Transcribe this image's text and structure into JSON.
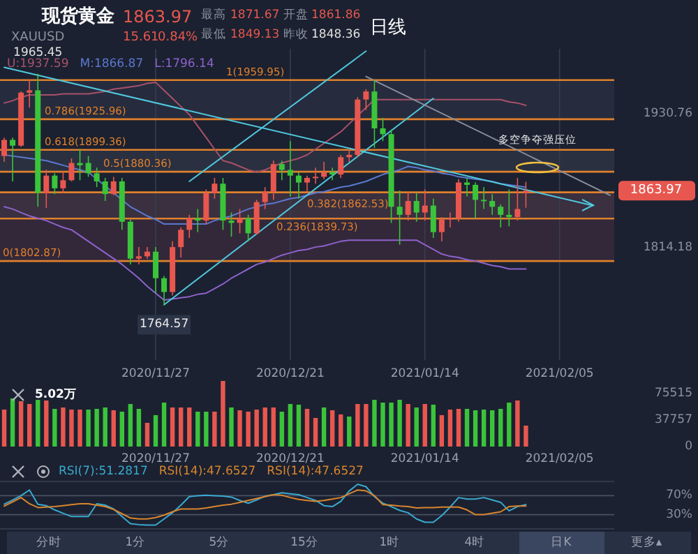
{
  "chart_data": [
    {
      "type": "other",
      "title": "现货黄金",
      "annotations": [
        "XAUUSD",
        "1863.97",
        "15.61",
        "0.84%",
        "最高",
        "1871.67",
        "开盘",
        "1861.86",
        "最低",
        "1849.13",
        "昨收",
        "1848.36",
        "分时",
        "1分",
        "5分",
        "15分",
        "1时",
        "4时",
        "日K",
        "更多▴"
      ]
    },
    {
      "type": "candlestick",
      "categories": [
        null,
        null,
        null,
        null,
        null,
        null,
        null,
        null,
        null,
        null,
        null,
        null,
        null,
        null,
        null,
        null,
        null,
        null,
        "2020/11/27",
        null,
        null,
        null,
        null,
        null,
        null,
        null,
        null,
        null,
        null,
        null,
        null,
        null,
        null,
        null,
        "2020/12/21",
        null,
        null,
        null,
        null,
        null,
        null,
        null,
        null,
        null,
        null,
        null,
        null,
        null,
        null,
        null,
        "2021/01/14",
        null,
        null,
        null,
        null,
        null,
        null,
        null,
        null,
        null,
        null,
        null,
        null,
        null,
        null,
        null,
        "2021/02/05",
        null,
        null,
        null,
        null,
        null,
        null
      ],
      "ohlc": [
        [
          1894,
          1910,
          1889,
          1908
        ],
        [
          1908,
          1910,
          1872,
          1903
        ],
        [
          1903,
          1950,
          1902,
          1949
        ],
        [
          1949,
          1960,
          1936,
          1951
        ],
        [
          1951,
          1965.45,
          1850,
          1862
        ],
        [
          1862,
          1882,
          1849,
          1877
        ],
        [
          1877,
          1879,
          1861,
          1866
        ],
        [
          1866,
          1881,
          1862,
          1873
        ],
        [
          1873,
          1892,
          1872,
          1888
        ],
        [
          1888,
          1900,
          1873,
          1886
        ],
        [
          1888,
          1894,
          1876,
          1879
        ],
        [
          1879,
          1884,
          1867,
          1872
        ],
        [
          1872,
          1875,
          1855,
          1861
        ],
        [
          1861,
          1876,
          1860,
          1872
        ],
        [
          1872,
          1875,
          1830,
          1837
        ],
        [
          1837,
          1839,
          1800,
          1805
        ],
        [
          1805,
          1815,
          1800,
          1807
        ],
        [
          1807,
          1815,
          1805,
          1811
        ],
        [
          1811,
          1815,
          1775,
          1788
        ],
        [
          1788,
          1790,
          1764.57,
          1776
        ],
        [
          1776,
          1820,
          1773,
          1815
        ],
        [
          1815,
          1832,
          1806,
          1830
        ],
        [
          1830,
          1843,
          1823,
          1840
        ],
        [
          1840,
          1848,
          1828,
          1838
        ],
        [
          1838,
          1865,
          1835,
          1862
        ],
        [
          1862,
          1875,
          1857,
          1870
        ],
        [
          1870,
          1875,
          1830,
          1838
        ],
        [
          1838,
          1845,
          1824,
          1836
        ],
        [
          1836,
          1848,
          1827,
          1840
        ],
        [
          1840,
          1843,
          1820,
          1827
        ],
        [
          1827,
          1856,
          1826,
          1854
        ],
        [
          1854,
          1867,
          1848,
          1863
        ],
        [
          1863,
          1890,
          1856,
          1887
        ],
        [
          1887,
          1890,
          1873,
          1882
        ],
        [
          1882,
          1907,
          1859,
          1877
        ],
        [
          1877,
          1880,
          1857,
          1871
        ],
        [
          1871,
          1877,
          1862,
          1875
        ],
        [
          1875,
          1884,
          1870,
          1876
        ],
        [
          1876,
          1889,
          1874,
          1880
        ],
        [
          1880,
          1884,
          1873,
          1878
        ],
        [
          1878,
          1895,
          1875,
          1893
        ],
        [
          1893,
          1900,
          1889,
          1895
        ],
        [
          1895,
          1945,
          1893,
          1943
        ],
        [
          1943,
          1952,
          1934,
          1950
        ],
        [
          1950,
          1959.95,
          1901,
          1918
        ],
        [
          1918,
          1927,
          1907,
          1913
        ],
        [
          1913,
          1917,
          1836,
          1850
        ],
        [
          1850,
          1864,
          1817,
          1843
        ],
        [
          1843,
          1863,
          1838,
          1855
        ],
        [
          1855,
          1862,
          1837,
          1845
        ],
        [
          1845,
          1865,
          1838,
          1851
        ],
        [
          1851,
          1857,
          1823,
          1828
        ],
        [
          1828,
          1841,
          1820,
          1839
        ],
        [
          1839,
          1845,
          1832,
          1840
        ],
        [
          1840,
          1874,
          1837,
          1871
        ],
        [
          1871,
          1875,
          1859,
          1869
        ],
        [
          1869,
          1871,
          1840,
          1856
        ],
        [
          1856,
          1867,
          1848,
          1855
        ],
        [
          1855,
          1861,
          1843,
          1850
        ],
        [
          1850,
          1852,
          1832,
          1843
        ],
        [
          1843,
          1865,
          1833,
          1841
        ],
        [
          1841,
          1875,
          1838,
          1848
        ],
        [
          1861.86,
          1871.67,
          1849.13,
          1863.97
        ],
        null,
        null,
        null,
        null,
        null,
        null,
        null,
        null,
        null,
        null
      ],
      "series": [
        {
          "name": "U:1937.59",
          "type": "line",
          "color": "#a8506a",
          "values": [
            1940,
            1942,
            1945,
            1947,
            1947,
            1947,
            1947,
            1948,
            1948,
            1948,
            1948,
            1949,
            1950,
            1952,
            1953,
            1954,
            1955,
            1957,
            1958,
            1951,
            1944,
            1937,
            1930,
            1920,
            1910,
            1900,
            1890,
            1888,
            1885,
            1882,
            1880,
            1882,
            1885,
            1888,
            1890,
            1892,
            1895,
            1900,
            1905,
            1910,
            1915,
            1922,
            1929,
            1936,
            1943,
            1943,
            1943,
            1943,
            1943,
            1943,
            1943,
            1943,
            1943,
            1943,
            1943,
            1943,
            1943,
            1943,
            1943,
            1943,
            1941,
            1940,
            1938,
            null,
            null,
            null,
            null,
            null,
            null,
            null,
            null,
            null,
            null
          ]
        },
        {
          "name": "M:1866.87",
          "type": "line",
          "color": "#5b78d0",
          "values": [
            1895,
            1894,
            1893,
            1892,
            1891,
            1890,
            1888,
            1886,
            1884,
            1882,
            1880,
            1874,
            1868,
            1862,
            1856,
            1850,
            1846,
            1842,
            1839,
            1835,
            1835,
            1835,
            1835,
            1835,
            1835,
            1838,
            1840,
            1842,
            1845,
            1848,
            1850,
            1852,
            1853,
            1855,
            1857,
            1858,
            1860,
            1862,
            1863,
            1865,
            1867,
            1868,
            1870,
            1872,
            1875,
            1878,
            1880,
            1882,
            1885,
            1884,
            1882,
            1881,
            1879,
            1878,
            1876,
            1875,
            1874,
            1873,
            1872,
            1870,
            1869,
            1868,
            1867,
            null,
            null,
            null,
            null,
            null,
            null,
            null,
            null,
            null,
            null
          ]
        },
        {
          "name": "L:1796.14",
          "type": "line",
          "color": "#8e62cc",
          "values": [
            1850,
            1848,
            1845,
            1842,
            1840,
            1838,
            1835,
            1832,
            1830,
            1825,
            1820,
            1815,
            1810,
            1805,
            1800,
            1794,
            1788,
            1781,
            1775,
            1769,
            1770,
            1771,
            1772,
            1774,
            1775,
            1779,
            1783,
            1788,
            1792,
            1796,
            1800,
            1802,
            1805,
            1808,
            1810,
            1812,
            1813,
            1815,
            1816,
            1818,
            1820,
            1821,
            1821,
            1821,
            1821,
            1821,
            1821,
            1821,
            1821,
            1821,
            1817,
            1813,
            1809,
            1807,
            1806,
            1804,
            1803,
            1801,
            1799,
            1798,
            1796,
            1796,
            1796,
            null,
            null,
            null,
            null,
            null,
            null,
            null,
            null,
            null,
            null
          ]
        },
        {
          "type": "line",
          "color": "#4fc8de",
          "values": [
            null,
            null,
            null,
            null,
            null,
            null,
            null,
            null,
            null,
            null,
            null,
            null,
            null,
            null,
            null,
            null,
            null,
            null,
            null,
            1765,
            null,
            null,
            null,
            null,
            null,
            null,
            null,
            null,
            null,
            null,
            null,
            null,
            null,
            null,
            null,
            null,
            null,
            null,
            null,
            null,
            null,
            null,
            null,
            null,
            null,
            null,
            null,
            null,
            null,
            null,
            null,
            1944,
            null,
            null,
            null,
            null,
            null,
            null,
            null,
            null,
            null,
            null,
            null,
            null,
            null,
            null,
            null,
            null,
            null,
            null,
            null,
            null,
            null
          ]
        },
        {
          "type": "line",
          "color": "#4fc8de",
          "values": [
            null,
            null,
            null,
            null,
            null,
            null,
            null,
            null,
            null,
            null,
            null,
            null,
            null,
            null,
            null,
            null,
            null,
            null,
            null,
            null,
            null,
            null,
            1872,
            null,
            null,
            null,
            null,
            null,
            null,
            null,
            null,
            null,
            null,
            null,
            null,
            null,
            null,
            null,
            null,
            null,
            null,
            null,
            null,
            1985,
            null,
            null,
            null,
            null,
            null,
            null,
            null,
            null,
            null,
            null,
            null,
            null,
            null,
            null,
            null,
            null,
            null,
            null,
            null,
            null,
            null,
            null,
            null,
            null,
            null,
            null,
            null,
            null,
            null
          ]
        },
        {
          "type": "line",
          "color": "#4fc8de",
          "values": [
            1971,
            null,
            null,
            null,
            null,
            null,
            null,
            null,
            null,
            null,
            null,
            null,
            null,
            null,
            null,
            null,
            null,
            null,
            null,
            null,
            null,
            null,
            null,
            null,
            null,
            null,
            null,
            null,
            null,
            null,
            null,
            null,
            null,
            null,
            null,
            null,
            null,
            null,
            null,
            null,
            null,
            null,
            null,
            null,
            null,
            null,
            null,
            null,
            null,
            null,
            null,
            null,
            null,
            null,
            null,
            null,
            null,
            null,
            null,
            null,
            null,
            null,
            null,
            null,
            null,
            null,
            null,
            null,
            null,
            null,
            1851,
            null,
            null
          ]
        },
        {
          "type": "line",
          "color": "#8a8f9c",
          "values": [
            null,
            null,
            null,
            null,
            null,
            null,
            null,
            null,
            null,
            null,
            null,
            null,
            null,
            null,
            null,
            null,
            null,
            null,
            null,
            null,
            null,
            null,
            null,
            null,
            null,
            null,
            null,
            null,
            null,
            null,
            null,
            null,
            null,
            null,
            null,
            null,
            null,
            null,
            null,
            null,
            null,
            null,
            null,
            1963,
            null,
            null,
            null,
            null,
            null,
            null,
            null,
            null,
            null,
            null,
            null,
            null,
            null,
            null,
            null,
            null,
            null,
            null,
            null,
            null,
            null,
            null,
            null,
            null,
            null,
            null,
            null,
            null,
            1860
          ]
        }
      ],
      "ylim": [
        1717,
        1987
      ],
      "yticks": [
        1930.76,
        1814.18
      ],
      "grid": "x",
      "legend": "top left",
      "bands": [
        {
          "axis": "y",
          "from": 1925.96,
          "to": 1959.95,
          "color": "#262c3d"
        },
        {
          "axis": "y",
          "from": 1880.36,
          "to": 1899.36,
          "color": "#2a3040"
        },
        {
          "axis": "y",
          "from": 1839.73,
          "to": 1862.53,
          "color": "#3a3040"
        },
        {
          "axis": "y",
          "from": 1802.87,
          "to": 1839.73,
          "color": "#33283a"
        }
      ],
      "ref_lines": [
        {
          "axis": "y",
          "value": 1959.95,
          "label": "1(1959.95)",
          "color": "#e0802c"
        },
        {
          "axis": "y",
          "value": 1925.96,
          "label": "0.786(1925.96)",
          "color": "#e0802c"
        },
        {
          "axis": "y",
          "value": 1899.36,
          "label": "0.618(1899.36)",
          "color": "#e0802c"
        },
        {
          "axis": "y",
          "value": 1880.36,
          "label": "0.5(1880.36)",
          "color": "#e0802c"
        },
        {
          "axis": "y",
          "value": 1862.53,
          "label": "0.382(1862.53)",
          "color": "#e0802c"
        },
        {
          "axis": "y",
          "value": 1839.73,
          "label": "0.236(1839.73)",
          "color": "#e0802c"
        },
        {
          "axis": "y",
          "value": 1802.87,
          "label": "0(1802.87)",
          "color": "#e0802c"
        }
      ],
      "annotations": [
        "日线",
        "多空争夺强压位",
        "1863.97",
        {
          "text": "1965.45",
          "y": 1965.45
        },
        {
          "text": "1764.57",
          "y": 1764.57
        }
      ]
    },
    {
      "type": "bar",
      "categories": [
        null,
        null,
        null,
        null,
        null,
        null,
        null,
        null,
        null,
        null,
        null,
        null,
        null,
        null,
        null,
        null,
        null,
        null,
        "2020/11/27",
        null,
        null,
        null,
        null,
        null,
        null,
        null,
        null,
        null,
        null,
        null,
        null,
        null,
        null,
        null,
        "2020/12/21",
        null,
        null,
        null,
        null,
        null,
        null,
        null,
        null,
        null,
        null,
        null,
        null,
        null,
        null,
        null,
        "2021/01/14",
        null,
        null,
        null,
        null,
        null,
        null,
        null,
        null,
        null,
        null,
        null,
        null,
        null,
        null,
        null,
        "2021/02/05",
        null,
        null,
        null,
        null,
        null,
        null
      ],
      "values": [
        53000,
        69000,
        65000,
        61000,
        67000,
        66000,
        54000,
        56000,
        53000,
        53000,
        53000,
        54000,
        56000,
        52000,
        50000,
        61000,
        54000,
        34000,
        45000,
        63000,
        56000,
        56000,
        56000,
        50000,
        50000,
        50000,
        94000,
        56000,
        52000,
        50000,
        53000,
        56000,
        56000,
        50000,
        61000,
        60000,
        54000,
        41000,
        56000,
        52000,
        46000,
        43000,
        61000,
        61000,
        67000,
        63000,
        63000,
        67000,
        61000,
        56000,
        61000,
        60000,
        45000,
        53000,
        54000,
        54000,
        52000,
        53000,
        52000,
        54000,
        63000,
        66000,
        30000,
        null,
        null,
        null,
        null,
        null,
        null,
        null,
        null,
        null,
        null
      ],
      "colors": [
        "#e8574f",
        "#3bc43b",
        "#e8574f",
        "#e8574f",
        "#3bc43b",
        "#e8574f",
        "#3bc43b",
        "#e8574f",
        "#e8574f",
        "#e8574f",
        "#3bc43b",
        "#3bc43b",
        "#3bc43b",
        "#e8574f",
        "#3bc43b",
        "#3bc43b",
        "#3bc43b",
        "#e8574f",
        "#3bc43b",
        "#3bc43b",
        "#e8574f",
        "#e8574f",
        "#e8574f",
        "#3bc43b",
        "#3bc43b",
        "#e8574f",
        "#e8574f",
        "#3bc43b",
        "#e8574f",
        "#e8574f",
        "#e8574f",
        "#e8574f",
        "#e8574f",
        "#3bc43b",
        "#3bc43b",
        "#3bc43b",
        "#e8574f",
        "#e8574f",
        "#3bc43b",
        "#e8574f",
        "#e8574f",
        "#3bc43b",
        "#e8574f",
        "#e8574f",
        "#3bc43b",
        "#3bc43b",
        "#3bc43b",
        "#3bc43b",
        "#e8574f",
        "#3bc43b",
        "#e8574f",
        "#3bc43b",
        "#e8574f",
        "#e8574f",
        "#e8574f",
        "#3bc43b",
        "#3bc43b",
        "#3bc43b",
        "#3bc43b",
        "#3bc43b",
        "#3bc43b",
        "#e8574f",
        "#e8574f",
        null,
        null,
        null,
        null,
        null,
        null,
        null,
        null,
        null,
        null
      ],
      "ylim": [
        0,
        96000
      ],
      "yticks": [
        0,
        37757,
        75515
      ],
      "annotations": [
        "5.02万"
      ]
    },
    {
      "type": "line",
      "categories": [
        null,
        null,
        null,
        null,
        null,
        null,
        null,
        null,
        null,
        null,
        null,
        null,
        null,
        null,
        null,
        null,
        null,
        null,
        null,
        null,
        null,
        null,
        null,
        null,
        null,
        null,
        null,
        null,
        null,
        null,
        null,
        null,
        null,
        null,
        null,
        null,
        null,
        null,
        null,
        null,
        null,
        null,
        null,
        null,
        null,
        null,
        null,
        null,
        null,
        null,
        null,
        null,
        null,
        null,
        null,
        null,
        null,
        null,
        null,
        null,
        null,
        null,
        null,
        null,
        null,
        null,
        null,
        null,
        null,
        null,
        null,
        null,
        null
      ],
      "ylim": [
        0,
        100
      ],
      "yticks": [
        {
          "value": 70,
          "label": "70%"
        },
        {
          "value": 30,
          "label": "30%"
        }
      ],
      "grid": "y",
      "legend": "top left",
      "series": [
        {
          "name": "RSI(7):51.2817",
          "color": "#3aa9d0",
          "values": [
            52,
            61,
            70,
            82,
            52,
            49,
            40,
            33,
            26,
            26,
            26,
            53,
            50,
            42,
            26,
            11,
            9,
            8,
            8,
            21,
            34,
            50,
            68,
            70,
            71,
            70,
            69,
            67,
            60,
            54,
            61,
            69,
            72,
            76,
            74,
            72,
            66,
            60,
            49,
            47,
            58,
            80,
            94,
            89,
            68,
            54,
            47,
            39,
            34,
            21,
            14,
            14,
            28,
            46,
            66,
            63,
            63,
            66,
            61,
            56,
            38,
            47,
            51,
            null,
            null,
            null,
            null,
            null,
            null,
            null,
            null,
            null,
            null
          ]
        },
        {
          "name": "RSI(14):47.6527",
          "color": "#d9852e",
          "values": [
            48,
            57,
            66,
            53,
            45,
            46,
            47,
            49,
            51,
            53,
            53,
            50,
            47,
            41,
            32,
            23,
            21,
            21,
            24,
            29,
            36,
            42,
            42,
            42,
            44,
            47,
            50,
            52,
            56,
            60,
            64,
            68,
            72,
            71,
            66,
            62,
            60,
            58,
            60,
            63,
            66,
            74,
            82,
            80,
            70,
            51,
            50,
            48,
            47,
            44,
            45,
            45,
            46,
            46,
            46,
            40,
            30,
            30,
            33,
            36,
            47,
            48,
            48,
            null,
            null,
            null,
            null,
            null,
            null,
            null,
            null,
            null,
            null
          ]
        }
      ],
      "annotations": [
        "RSI(14):47.6527"
      ]
    }
  ]
}
